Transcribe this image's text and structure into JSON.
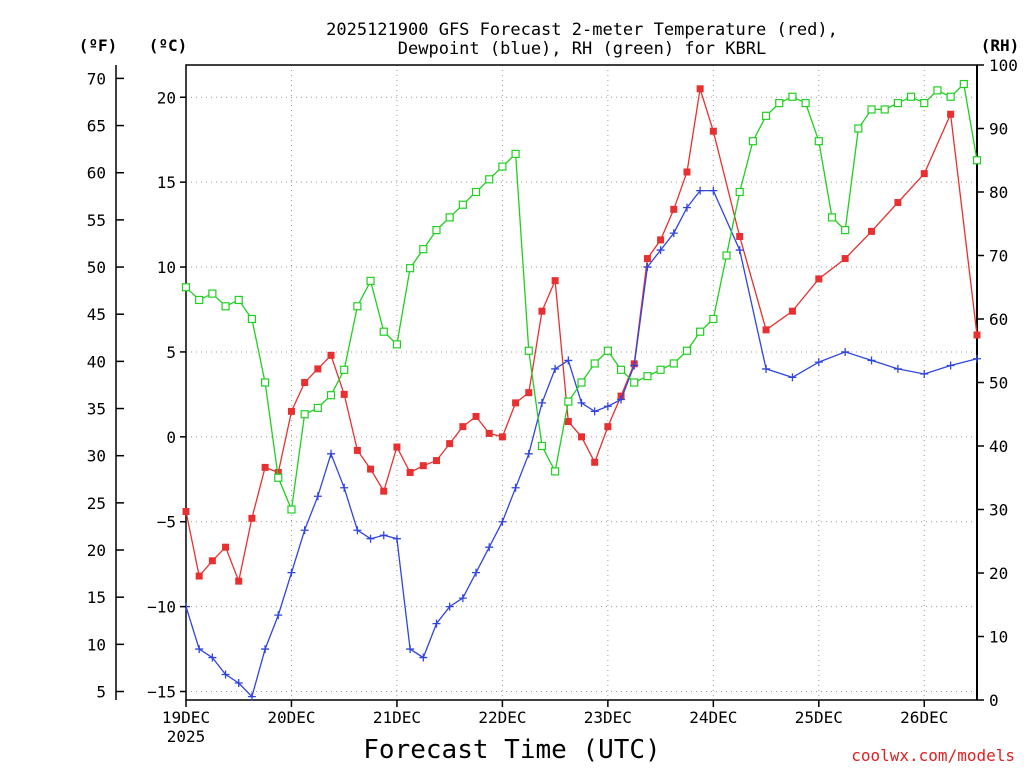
{
  "chart_data": {
    "type": "line",
    "title_line1": "2025121900 GFS Forecast 2-meter Temperature (red),",
    "title_line2": "Dewpoint (blue), RH (green) for KBRL",
    "xlabel": "Forecast Time (UTC)",
    "credit": "coolwx.com/models",
    "credit_color": "#e02020",
    "units": {
      "fahrenheit": "(ºF)",
      "celsius": "(ºC)",
      "rh": "(RH)"
    },
    "x_ticks": [
      "19DEC",
      "20DEC",
      "21DEC",
      "22DEC",
      "23DEC",
      "24DEC",
      "25DEC",
      "26DEC"
    ],
    "x_subtick": "2025",
    "xlim_days": [
      0,
      7.5
    ],
    "y_celsius_ticks": [
      "20",
      "15",
      "10",
      "5",
      "0",
      "−5",
      "−10",
      "−15"
    ],
    "y_fahrenheit_ticks": [
      "70",
      "65",
      "60",
      "55",
      "50",
      "45",
      "40",
      "35",
      "30",
      "25",
      "20",
      "15",
      "10",
      "5"
    ],
    "y_rh_ticks": [
      "100",
      "90",
      "80",
      "70",
      "60",
      "50",
      "40",
      "30",
      "20",
      "10",
      "0"
    ],
    "ylim_celsius": [
      -15.5,
      21.9
    ],
    "ylim_rh": [
      0,
      100
    ],
    "series": [
      {
        "name": "2-meter Temperature",
        "unit": "C",
        "color": "#e83030",
        "marker": "square-filled",
        "x": [
          0,
          0.125,
          0.25,
          0.375,
          0.5,
          0.625,
          0.75,
          0.875,
          1.0,
          1.125,
          1.25,
          1.375,
          1.5,
          1.625,
          1.75,
          1.875,
          2.0,
          2.125,
          2.25,
          2.375,
          2.5,
          2.625,
          2.75,
          2.875,
          3.0,
          3.125,
          3.25,
          3.375,
          3.5,
          3.625,
          3.75,
          3.875,
          4.0,
          4.125,
          4.25,
          4.375,
          4.5,
          4.625,
          4.75,
          4.875,
          5.0,
          5.25,
          5.5,
          5.75,
          6.0,
          6.25,
          6.5,
          6.75,
          7.0,
          7.25,
          7.5
        ],
        "values": [
          -4.4,
          -8.2,
          -7.3,
          -6.5,
          -8.5,
          -4.8,
          -1.8,
          -2.1,
          1.5,
          3.2,
          4.0,
          4.8,
          2.5,
          -0.8,
          -1.9,
          -3.2,
          -0.6,
          -2.1,
          -1.7,
          -1.4,
          -0.4,
          0.6,
          1.2,
          0.2,
          0.0,
          2.0,
          2.6,
          7.4,
          9.2,
          0.9,
          0.0,
          -1.5,
          0.6,
          2.4,
          4.3,
          10.5,
          11.6,
          13.4,
          15.6,
          20.5,
          18.0,
          11.8,
          6.3,
          7.4,
          9.3,
          10.5,
          12.1,
          13.8,
          15.5,
          19.0,
          6.0
        ]
      },
      {
        "name": "Dewpoint",
        "unit": "C",
        "color": "#3045e0",
        "marker": "plus",
        "x": [
          0,
          0.125,
          0.25,
          0.375,
          0.5,
          0.625,
          0.75,
          0.875,
          1.0,
          1.125,
          1.25,
          1.375,
          1.5,
          1.625,
          1.75,
          1.875,
          2.0,
          2.125,
          2.25,
          2.375,
          2.5,
          2.625,
          2.75,
          2.875,
          3.0,
          3.125,
          3.25,
          3.375,
          3.5,
          3.625,
          3.75,
          3.875,
          4.0,
          4.125,
          4.25,
          4.375,
          4.5,
          4.625,
          4.75,
          4.875,
          5.0,
          5.25,
          5.5,
          5.75,
          6.0,
          6.25,
          6.5,
          6.75,
          7.0,
          7.25,
          7.5
        ],
        "values": [
          -10.0,
          -12.5,
          -13.0,
          -14.0,
          -14.5,
          -15.3,
          -12.5,
          -10.5,
          -8.0,
          -5.5,
          -3.5,
          -1.0,
          -3.0,
          -5.5,
          -6.0,
          -5.8,
          -6.0,
          -12.5,
          -13.0,
          -11.0,
          -10.0,
          -9.5,
          -8.0,
          -6.5,
          -5.0,
          -3.0,
          -1.0,
          2.0,
          4.0,
          4.5,
          2.0,
          1.5,
          1.8,
          2.2,
          4.2,
          10.0,
          11.0,
          12.0,
          13.5,
          14.5,
          14.5,
          11.0,
          4.0,
          3.5,
          4.4,
          5.0,
          4.5,
          4.0,
          3.7,
          4.2,
          4.6
        ]
      },
      {
        "name": "RH",
        "unit": "%",
        "color": "#20d020",
        "marker": "square-open",
        "x": [
          0,
          0.125,
          0.25,
          0.375,
          0.5,
          0.625,
          0.75,
          0.875,
          1.0,
          1.125,
          1.25,
          1.375,
          1.5,
          1.625,
          1.75,
          1.875,
          2.0,
          2.125,
          2.25,
          2.375,
          2.5,
          2.625,
          2.75,
          2.875,
          3.0,
          3.125,
          3.25,
          3.375,
          3.5,
          3.625,
          3.75,
          3.875,
          4.0,
          4.125,
          4.25,
          4.375,
          4.5,
          4.625,
          4.75,
          4.875,
          5.0,
          5.125,
          5.25,
          5.375,
          5.5,
          5.625,
          5.75,
          5.875,
          6.0,
          6.125,
          6.25,
          6.375,
          6.5,
          6.625,
          6.75,
          6.875,
          7.0,
          7.125,
          7.25,
          7.375,
          7.5
        ],
        "values": [
          65,
          63,
          64,
          62,
          63,
          60,
          50,
          35,
          30,
          45,
          46,
          48,
          52,
          62,
          66,
          58,
          56,
          68,
          71,
          74,
          76,
          78,
          80,
          82,
          84,
          86,
          55,
          40,
          36,
          47,
          50,
          53,
          55,
          52,
          50,
          51,
          52,
          53,
          55,
          58,
          60,
          70,
          80,
          88,
          92,
          94,
          95,
          94,
          88,
          76,
          74,
          90,
          93,
          93,
          94,
          95,
          94,
          96,
          95,
          97,
          85
        ]
      }
    ]
  }
}
